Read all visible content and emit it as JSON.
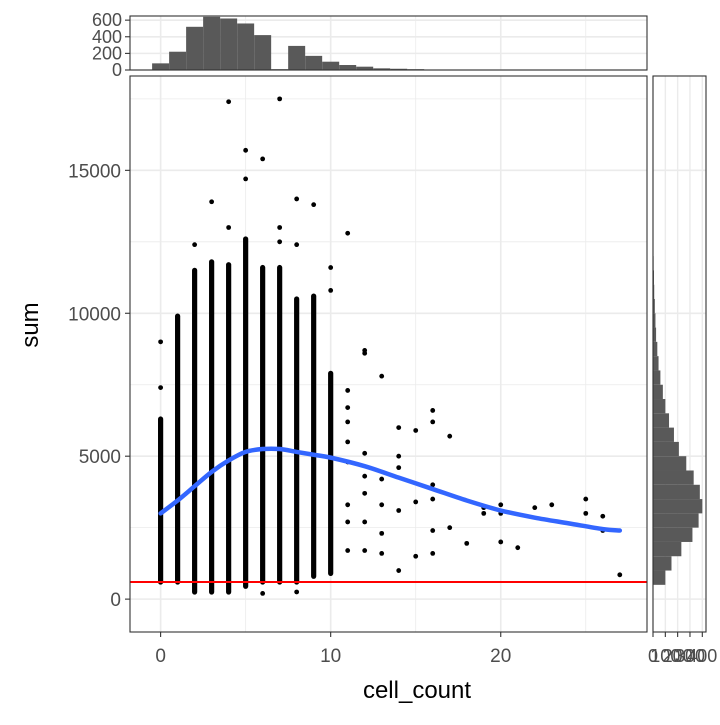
{
  "chart_data": {
    "type": "scatter",
    "xlabel": "cell_count",
    "ylabel": "sum",
    "xlim": [
      -1.8,
      28.6
    ],
    "ylim": [
      -1150,
      18300
    ],
    "x_ticks": [
      0,
      10,
      20
    ],
    "y_ticks": [
      0,
      5000,
      10000,
      15000
    ],
    "x_tick_labels": [
      "0",
      "10",
      "20"
    ],
    "y_tick_labels": [
      "0",
      "5000",
      "10000",
      "15000"
    ],
    "grid": true,
    "legend": "none",
    "colors": {
      "points": "#000000",
      "smooth": "#3366FF",
      "hline": "#FF0000",
      "histogram": "#595959",
      "grid": "#EBEBEB",
      "border": "#333333"
    },
    "hline": {
      "y": 600
    },
    "smooth": {
      "x": [
        0,
        1,
        2,
        3,
        4,
        5,
        6,
        7,
        8,
        9,
        10,
        12,
        14,
        16,
        18,
        20,
        22,
        24,
        26,
        27
      ],
      "y": [
        3000,
        3450,
        3950,
        4450,
        4850,
        5150,
        5250,
        5250,
        5150,
        5050,
        4950,
        4650,
        4250,
        3850,
        3450,
        3100,
        2850,
        2650,
        2450,
        2400
      ]
    },
    "columns": [
      {
        "x": 0,
        "min": 600,
        "max": 6300
      },
      {
        "x": 1,
        "min": 600,
        "max": 9900
      },
      {
        "x": 2,
        "min": 250,
        "max": 11500
      },
      {
        "x": 3,
        "min": 250,
        "max": 11800
      },
      {
        "x": 4,
        "min": 250,
        "max": 11700
      },
      {
        "x": 5,
        "min": 450,
        "max": 12600
      },
      {
        "x": 6,
        "min": 600,
        "max": 11600
      },
      {
        "x": 7,
        "min": 600,
        "max": 11600
      },
      {
        "x": 8,
        "min": 600,
        "max": 10500
      },
      {
        "x": 9,
        "min": 800,
        "max": 10600
      },
      {
        "x": 10,
        "min": 900,
        "max": 7900
      }
    ],
    "points": [
      {
        "x": 0,
        "y": 9000
      },
      {
        "x": 0,
        "y": 7400
      },
      {
        "x": 4,
        "y": 17400
      },
      {
        "x": 7,
        "y": 17500
      },
      {
        "x": 5,
        "y": 15700
      },
      {
        "x": 6,
        "y": 15400
      },
      {
        "x": 5,
        "y": 14700
      },
      {
        "x": 3,
        "y": 13900
      },
      {
        "x": 8,
        "y": 14000
      },
      {
        "x": 9,
        "y": 13800
      },
      {
        "x": 7,
        "y": 13000
      },
      {
        "x": 7,
        "y": 12500
      },
      {
        "x": 8,
        "y": 12400
      },
      {
        "x": 11,
        "y": 12800
      },
      {
        "x": 2,
        "y": 12400
      },
      {
        "x": 4,
        "y": 13000
      },
      {
        "x": 10,
        "y": 11600
      },
      {
        "x": 10,
        "y": 10800
      },
      {
        "x": 12,
        "y": 8700
      },
      {
        "x": 12,
        "y": 8600
      },
      {
        "x": 13,
        "y": 7800
      },
      {
        "x": 11,
        "y": 7300
      },
      {
        "x": 11,
        "y": 6700
      },
      {
        "x": 11,
        "y": 6200
      },
      {
        "x": 11,
        "y": 5500
      },
      {
        "x": 11,
        "y": 4800
      },
      {
        "x": 11,
        "y": 3300
      },
      {
        "x": 11,
        "y": 2700
      },
      {
        "x": 11,
        "y": 1700
      },
      {
        "x": 12,
        "y": 5100
      },
      {
        "x": 12,
        "y": 4300
      },
      {
        "x": 12,
        "y": 3700
      },
      {
        "x": 12,
        "y": 2700
      },
      {
        "x": 12,
        "y": 1700
      },
      {
        "x": 13,
        "y": 4200
      },
      {
        "x": 13,
        "y": 3300
      },
      {
        "x": 13,
        "y": 2300
      },
      {
        "x": 13,
        "y": 1600
      },
      {
        "x": 14,
        "y": 6000
      },
      {
        "x": 14,
        "y": 4600
      },
      {
        "x": 14,
        "y": 3100
      },
      {
        "x": 14,
        "y": 1000
      },
      {
        "x": 15,
        "y": 5900
      },
      {
        "x": 15,
        "y": 1500
      },
      {
        "x": 16,
        "y": 6600
      },
      {
        "x": 16,
        "y": 6200
      },
      {
        "x": 16,
        "y": 4000
      },
      {
        "x": 16,
        "y": 3500
      },
      {
        "x": 16,
        "y": 2400
      },
      {
        "x": 16,
        "y": 1600
      },
      {
        "x": 17,
        "y": 5700
      },
      {
        "x": 17,
        "y": 2500
      },
      {
        "x": 18,
        "y": 1950
      },
      {
        "x": 19,
        "y": 3200
      },
      {
        "x": 19,
        "y": 3000
      },
      {
        "x": 20,
        "y": 3300
      },
      {
        "x": 20,
        "y": 3000
      },
      {
        "x": 20,
        "y": 2000
      },
      {
        "x": 21,
        "y": 1800
      },
      {
        "x": 22,
        "y": 3200
      },
      {
        "x": 23,
        "y": 3300
      },
      {
        "x": 25,
        "y": 3500
      },
      {
        "x": 25,
        "y": 3000
      },
      {
        "x": 26,
        "y": 2900
      },
      {
        "x": 26,
        "y": 2400
      },
      {
        "x": 27,
        "y": 850
      },
      {
        "x": 8,
        "y": 250
      },
      {
        "x": 6,
        "y": 200
      },
      {
        "x": 14,
        "y": 5000
      },
      {
        "x": 15,
        "y": 3400
      }
    ],
    "top_histogram": {
      "y_ticks": [
        0,
        200,
        400,
        600
      ],
      "y_tick_labels": [
        "0",
        "200",
        "400",
        "600"
      ],
      "ylim": [
        0,
        650
      ],
      "bins": [
        {
          "x0": -0.5,
          "x1": 0.5,
          "count": 80
        },
        {
          "x0": 0.5,
          "x1": 1.5,
          "count": 220
        },
        {
          "x0": 1.5,
          "x1": 2.5,
          "count": 520
        },
        {
          "x0": 2.5,
          "x1": 3.5,
          "count": 640
        },
        {
          "x0": 3.5,
          "x1": 4.5,
          "count": 620
        },
        {
          "x0": 4.5,
          "x1": 5.5,
          "count": 560
        },
        {
          "x0": 5.5,
          "x1": 6.5,
          "count": 420
        },
        {
          "x0": 6.5,
          "x1": 7.5,
          "count": 10
        },
        {
          "x0": 7.5,
          "x1": 8.5,
          "count": 290
        },
        {
          "x0": 8.5,
          "x1": 9.5,
          "count": 170
        },
        {
          "x0": 9.5,
          "x1": 10.5,
          "count": 100
        },
        {
          "x0": 10.5,
          "x1": 11.5,
          "count": 60
        },
        {
          "x0": 11.5,
          "x1": 12.5,
          "count": 40
        },
        {
          "x0": 12.5,
          "x1": 13.5,
          "count": 20
        },
        {
          "x0": 13.5,
          "x1": 14.5,
          "count": 15
        },
        {
          "x0": 14.5,
          "x1": 15.5,
          "count": 10
        },
        {
          "x0": 15.5,
          "x1": 16.5,
          "count": 6
        },
        {
          "x0": 16.5,
          "x1": 17.5,
          "count": 4
        },
        {
          "x0": 17.5,
          "x1": 18.5,
          "count": 3
        },
        {
          "x0": 18.5,
          "x1": 19.5,
          "count": 3
        },
        {
          "x0": 19.5,
          "x1": 20.5,
          "count": 2
        },
        {
          "x0": 20.5,
          "x1": 21.5,
          "count": 2
        },
        {
          "x0": 21.5,
          "x1": 22.5,
          "count": 1
        },
        {
          "x0": 22.5,
          "x1": 23.5,
          "count": 1
        },
        {
          "x0": 24.5,
          "x1": 25.5,
          "count": 1
        },
        {
          "x0": 25.5,
          "x1": 26.5,
          "count": 1
        }
      ]
    },
    "right_histogram": {
      "x_tick_labels": [
        "0",
        "100",
        "200",
        "300",
        "400"
      ],
      "x_ticks": [
        0,
        100,
        200,
        300,
        400
      ],
      "xlim": [
        0,
        430
      ],
      "bins": [
        {
          "y0": 0,
          "y1": 500,
          "count": 0
        },
        {
          "y0": 500,
          "y1": 1000,
          "count": 100
        },
        {
          "y0": 1000,
          "y1": 1500,
          "count": 150
        },
        {
          "y0": 1500,
          "y1": 2000,
          "count": 230
        },
        {
          "y0": 2000,
          "y1": 2500,
          "count": 320
        },
        {
          "y0": 2500,
          "y1": 3000,
          "count": 370
        },
        {
          "y0": 3000,
          "y1": 3500,
          "count": 400
        },
        {
          "y0": 3500,
          "y1": 4000,
          "count": 380
        },
        {
          "y0": 4000,
          "y1": 4500,
          "count": 330
        },
        {
          "y0": 4500,
          "y1": 5000,
          "count": 270
        },
        {
          "y0": 5000,
          "y1": 5500,
          "count": 210
        },
        {
          "y0": 5500,
          "y1": 6000,
          "count": 170
        },
        {
          "y0": 6000,
          "y1": 6500,
          "count": 130
        },
        {
          "y0": 6500,
          "y1": 7000,
          "count": 100
        },
        {
          "y0": 7000,
          "y1": 7500,
          "count": 80
        },
        {
          "y0": 7500,
          "y1": 8000,
          "count": 60
        },
        {
          "y0": 8000,
          "y1": 8500,
          "count": 45
        },
        {
          "y0": 8500,
          "y1": 9000,
          "count": 35
        },
        {
          "y0": 9000,
          "y1": 9500,
          "count": 25
        },
        {
          "y0": 9500,
          "y1": 10000,
          "count": 20
        },
        {
          "y0": 10000,
          "y1": 10500,
          "count": 15
        },
        {
          "y0": 10500,
          "y1": 11000,
          "count": 10
        },
        {
          "y0": 11000,
          "y1": 11500,
          "count": 8
        },
        {
          "y0": 11500,
          "y1": 12000,
          "count": 5
        },
        {
          "y0": 12000,
          "y1": 12500,
          "count": 3
        }
      ]
    }
  }
}
